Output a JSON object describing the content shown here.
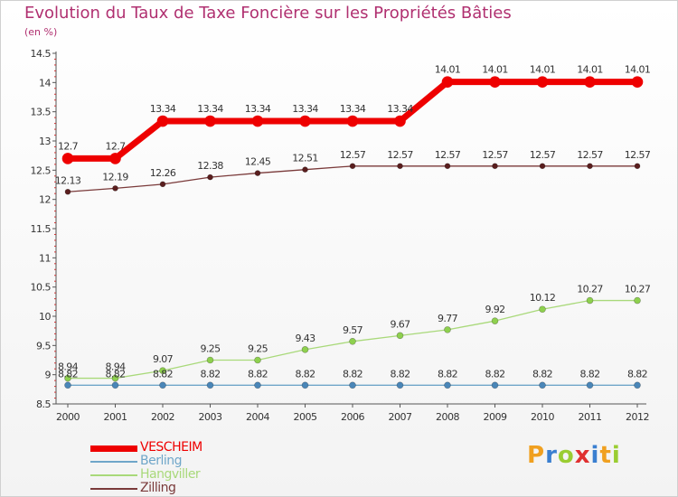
{
  "title": "Evolution du Taux de Taxe Foncière sur les Propriétés Bâties",
  "subtitle": "(en %)",
  "logo": {
    "letters": [
      "P",
      "r",
      "o",
      "x",
      "i",
      "t",
      "i"
    ],
    "colors": [
      "#f0a020",
      "#3a7fd0",
      "#9acd32",
      "#e03030",
      "#3a7fd0",
      "#f0a020",
      "#9acd32"
    ]
  },
  "colors": {
    "title": "#b03070",
    "axis": "#555555",
    "VESCHEIM": "#ee0000",
    "Berling": "#6fa6c9",
    "Hangviller": "#a9d97a",
    "Zilling": "#7a3a3a"
  },
  "chart_data": {
    "type": "line",
    "title": "Evolution du Taux de Taxe Foncière sur les Propriétés Bâties",
    "ylabel": "(en %)",
    "xlabel": "",
    "ylim": [
      8.5,
      14.5
    ],
    "yticks": [
      "8.5",
      "9",
      "9.5",
      "10",
      "10.5",
      "11",
      "11.5",
      "12",
      "12.5",
      "13",
      "13.5",
      "14",
      "14.5"
    ],
    "x": [
      "2000",
      "2001",
      "2002",
      "2003",
      "2004",
      "2005",
      "2006",
      "2007",
      "2008",
      "2009",
      "2010",
      "2011",
      "2012"
    ],
    "series": [
      {
        "name": "VESCHEIM",
        "values": [
          12.7,
          12.7,
          13.34,
          13.34,
          13.34,
          13.34,
          13.34,
          13.34,
          14.01,
          14.01,
          14.01,
          14.01,
          14.01
        ],
        "labels": [
          "12.7",
          "12.7",
          "13.34",
          "13.34",
          "13.34",
          "13.34",
          "13.34",
          "13.34",
          "14.01",
          "14.01",
          "14.01",
          "14.01",
          "14.01"
        ]
      },
      {
        "name": "Berling",
        "values": [
          8.82,
          8.82,
          8.82,
          8.82,
          8.82,
          8.82,
          8.82,
          8.82,
          8.82,
          8.82,
          8.82,
          8.82,
          8.82
        ],
        "labels": [
          "8.82",
          "8.82",
          "8.82",
          "8.82",
          "8.82",
          "8.82",
          "8.82",
          "8.82",
          "8.82",
          "8.82",
          "8.82",
          "8.82",
          "8.82"
        ]
      },
      {
        "name": "Hangviller",
        "values": [
          8.94,
          8.94,
          9.07,
          9.25,
          9.25,
          9.43,
          9.57,
          9.67,
          9.77,
          9.92,
          10.12,
          10.27,
          10.27
        ],
        "labels": [
          "8.94",
          "8.94",
          "9.07",
          "9.25",
          "9.25",
          "9.43",
          "9.57",
          "9.67",
          "9.77",
          "9.92",
          "10.12",
          "10.27",
          "10.27"
        ]
      },
      {
        "name": "Zilling",
        "values": [
          12.13,
          12.19,
          12.26,
          12.38,
          12.45,
          12.51,
          12.57,
          12.57,
          12.57,
          12.57,
          12.57,
          12.57,
          12.57
        ],
        "labels": [
          "12.13",
          "12.19",
          "12.26",
          "12.38",
          "12.45",
          "12.51",
          "12.57",
          "12.57",
          "12.57",
          "12.57",
          "12.57",
          "12.57",
          "12.57"
        ]
      }
    ],
    "legend": [
      "VESCHEIM",
      "Berling",
      "Hangviller",
      "Zilling"
    ],
    "legend_position": "bottom-left",
    "grid": false
  }
}
